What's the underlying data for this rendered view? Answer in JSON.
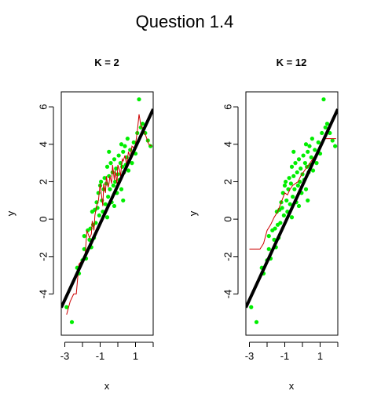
{
  "page": {
    "title": "Question 1.4"
  },
  "colors": {
    "points": "#00ee00",
    "fit_line": "#000000",
    "knn_line": "#cc0000",
    "axis": "#000000"
  },
  "chart_data": [
    {
      "type": "scatter",
      "title": "K = 2",
      "xlabel": "x",
      "ylabel": "y",
      "xlim": [
        -3.2,
        2.0
      ],
      "ylim": [
        -6.2,
        6.8
      ],
      "xticks": [
        -3,
        -1,
        1
      ],
      "yticks": [
        -4,
        -2,
        0,
        2,
        4,
        6
      ],
      "series": [
        {
          "kind": "points",
          "points": [
            [
              -2.9,
              -4.7
            ],
            [
              -2.6,
              -5.5
            ],
            [
              -2.3,
              -2.6
            ],
            [
              -2.2,
              -2.9
            ],
            [
              -2.0,
              -2.2
            ],
            [
              -1.9,
              -1.6
            ],
            [
              -1.8,
              -2.1
            ],
            [
              -1.7,
              -0.6
            ],
            [
              -1.6,
              -1.1
            ],
            [
              -1.55,
              -0.5
            ],
            [
              -1.5,
              -1.5
            ],
            [
              -1.45,
              0.4
            ],
            [
              -1.4,
              -0.3
            ],
            [
              -1.35,
              -1.0
            ],
            [
              -1.3,
              0.5
            ],
            [
              -1.25,
              -0.2
            ],
            [
              -1.2,
              0.9
            ],
            [
              -1.15,
              0.6
            ],
            [
              -1.1,
              1.4
            ],
            [
              -1.05,
              0.2
            ],
            [
              -1.0,
              1.8
            ],
            [
              -0.95,
              2.0
            ],
            [
              -0.9,
              1.0
            ],
            [
              -0.85,
              0.4
            ],
            [
              -0.8,
              1.6
            ],
            [
              -0.75,
              2.2
            ],
            [
              -0.7,
              0.8
            ],
            [
              -0.65,
              1.9
            ],
            [
              -0.6,
              2.8
            ],
            [
              -0.55,
              1.2
            ],
            [
              -0.5,
              2.3
            ],
            [
              -0.45,
              1.6
            ],
            [
              -0.4,
              3.0
            ],
            [
              -0.35,
              0.9
            ],
            [
              -0.3,
              2.5
            ],
            [
              -0.25,
              1.8
            ],
            [
              -0.2,
              3.2
            ],
            [
              -0.15,
              2.0
            ],
            [
              -0.1,
              2.7
            ],
            [
              -0.05,
              1.4
            ],
            [
              0.0,
              2.4
            ],
            [
              0.05,
              3.4
            ],
            [
              0.1,
              2.1
            ],
            [
              0.15,
              3.0
            ],
            [
              0.2,
              1.6
            ],
            [
              0.25,
              2.8
            ],
            [
              0.3,
              3.6
            ],
            [
              0.35,
              2.5
            ],
            [
              0.4,
              3.9
            ],
            [
              0.45,
              2.9
            ],
            [
              0.5,
              3.3
            ],
            [
              0.55,
              4.3
            ],
            [
              0.6,
              2.6
            ],
            [
              0.7,
              3.7
            ],
            [
              0.8,
              3.0
            ],
            [
              0.9,
              4.1
            ],
            [
              1.0,
              3.5
            ],
            [
              1.1,
              4.6
            ],
            [
              1.2,
              6.4
            ],
            [
              1.3,
              4.9
            ],
            [
              1.4,
              5.1
            ],
            [
              1.55,
              4.6
            ],
            [
              1.7,
              4.2
            ],
            [
              1.85,
              3.9
            ],
            [
              -0.6,
              0.1
            ],
            [
              -0.2,
              0.7
            ],
            [
              0.3,
              1.0
            ],
            [
              -1.9,
              -0.9
            ],
            [
              -0.5,
              3.6
            ],
            [
              0.2,
              4.0
            ]
          ]
        },
        {
          "kind": "fit",
          "points": [
            [
              -3.2,
              -4.72
            ],
            [
              2.0,
              5.88
            ]
          ]
        },
        {
          "kind": "knn",
          "points": [
            [
              -2.9,
              -5.1
            ],
            [
              -2.7,
              -4.4
            ],
            [
              -2.5,
              -4.0
            ],
            [
              -2.35,
              -4.0
            ],
            [
              -2.2,
              -2.4
            ],
            [
              -2.0,
              -2.2
            ],
            [
              -1.85,
              -1.9
            ],
            [
              -1.75,
              -0.6
            ],
            [
              -1.6,
              -1.0
            ],
            [
              -1.5,
              -0.8
            ],
            [
              -1.45,
              -0.1
            ],
            [
              -1.35,
              -0.6
            ],
            [
              -1.3,
              0.2
            ],
            [
              -1.2,
              0.7
            ],
            [
              -1.1,
              1.0
            ],
            [
              -1.0,
              1.9
            ],
            [
              -0.95,
              1.5
            ],
            [
              -0.85,
              0.7
            ],
            [
              -0.8,
              1.9
            ],
            [
              -0.7,
              1.4
            ],
            [
              -0.65,
              2.3
            ],
            [
              -0.55,
              1.7
            ],
            [
              -0.5,
              1.9
            ],
            [
              -0.45,
              2.3
            ],
            [
              -0.35,
              1.9
            ],
            [
              -0.3,
              2.9
            ],
            [
              -0.2,
              2.1
            ],
            [
              -0.15,
              2.6
            ],
            [
              -0.05,
              1.9
            ],
            [
              0.0,
              2.9
            ],
            [
              0.1,
              2.6
            ],
            [
              0.15,
              2.3
            ],
            [
              0.25,
              3.2
            ],
            [
              0.3,
              3.1
            ],
            [
              0.4,
              3.4
            ],
            [
              0.5,
              2.9
            ],
            [
              0.6,
              3.6
            ],
            [
              0.7,
              3.3
            ],
            [
              0.8,
              3.9
            ],
            [
              0.9,
              3.8
            ],
            [
              1.0,
              4.0
            ],
            [
              1.1,
              4.7
            ],
            [
              1.2,
              5.6
            ],
            [
              1.3,
              5.0
            ],
            [
              1.45,
              4.8
            ],
            [
              1.6,
              4.4
            ],
            [
              1.75,
              4.0
            ],
            [
              1.9,
              3.9
            ]
          ]
        }
      ]
    },
    {
      "type": "scatter",
      "title": "K = 12",
      "xlabel": "x",
      "ylabel": "y",
      "xlim": [
        -3.2,
        2.0
      ],
      "ylim": [
        -6.2,
        6.8
      ],
      "xticks": [
        -3,
        -1,
        1
      ],
      "yticks": [
        -4,
        -2,
        0,
        2,
        4,
        6
      ],
      "series": [
        {
          "kind": "points",
          "points": [
            [
              -2.9,
              -4.7
            ],
            [
              -2.6,
              -5.5
            ],
            [
              -2.3,
              -2.6
            ],
            [
              -2.2,
              -2.9
            ],
            [
              -2.0,
              -2.2
            ],
            [
              -1.9,
              -1.6
            ],
            [
              -1.8,
              -2.1
            ],
            [
              -1.7,
              -0.6
            ],
            [
              -1.6,
              -1.1
            ],
            [
              -1.55,
              -0.5
            ],
            [
              -1.5,
              -1.5
            ],
            [
              -1.45,
              0.4
            ],
            [
              -1.4,
              -0.3
            ],
            [
              -1.35,
              -1.0
            ],
            [
              -1.3,
              0.5
            ],
            [
              -1.25,
              -0.2
            ],
            [
              -1.2,
              0.9
            ],
            [
              -1.15,
              0.6
            ],
            [
              -1.1,
              1.4
            ],
            [
              -1.05,
              0.2
            ],
            [
              -1.0,
              1.8
            ],
            [
              -0.95,
              2.0
            ],
            [
              -0.9,
              1.0
            ],
            [
              -0.85,
              0.4
            ],
            [
              -0.8,
              1.6
            ],
            [
              -0.75,
              2.2
            ],
            [
              -0.7,
              0.8
            ],
            [
              -0.65,
              1.9
            ],
            [
              -0.6,
              2.8
            ],
            [
              -0.55,
              1.2
            ],
            [
              -0.5,
              2.3
            ],
            [
              -0.45,
              1.6
            ],
            [
              -0.4,
              3.0
            ],
            [
              -0.35,
              0.9
            ],
            [
              -0.3,
              2.5
            ],
            [
              -0.25,
              1.8
            ],
            [
              -0.2,
              3.2
            ],
            [
              -0.15,
              2.0
            ],
            [
              -0.1,
              2.7
            ],
            [
              -0.05,
              1.4
            ],
            [
              0.0,
              2.4
            ],
            [
              0.05,
              3.4
            ],
            [
              0.1,
              2.1
            ],
            [
              0.15,
              3.0
            ],
            [
              0.2,
              1.6
            ],
            [
              0.25,
              2.8
            ],
            [
              0.3,
              3.6
            ],
            [
              0.35,
              2.5
            ],
            [
              0.4,
              3.9
            ],
            [
              0.45,
              2.9
            ],
            [
              0.5,
              3.3
            ],
            [
              0.55,
              4.3
            ],
            [
              0.6,
              2.6
            ],
            [
              0.7,
              3.7
            ],
            [
              0.8,
              3.0
            ],
            [
              0.9,
              4.1
            ],
            [
              1.0,
              3.5
            ],
            [
              1.1,
              4.6
            ],
            [
              1.2,
              6.4
            ],
            [
              1.3,
              4.9
            ],
            [
              1.4,
              5.1
            ],
            [
              1.55,
              4.6
            ],
            [
              1.7,
              4.2
            ],
            [
              1.85,
              3.9
            ],
            [
              -0.6,
              0.1
            ],
            [
              -0.2,
              0.7
            ],
            [
              0.3,
              1.0
            ],
            [
              -1.9,
              -0.9
            ],
            [
              -0.5,
              3.6
            ],
            [
              0.2,
              4.0
            ]
          ]
        },
        {
          "kind": "fit",
          "points": [
            [
              -3.2,
              -4.72
            ],
            [
              2.0,
              5.88
            ]
          ]
        },
        {
          "kind": "knn",
          "points": [
            [
              -3.0,
              -1.6
            ],
            [
              -2.4,
              -1.6
            ],
            [
              -2.2,
              -1.3
            ],
            [
              -2.0,
              -0.6
            ],
            [
              -1.8,
              -0.3
            ],
            [
              -1.6,
              0.1
            ],
            [
              -1.4,
              0.4
            ],
            [
              -1.2,
              0.9
            ],
            [
              -1.0,
              1.4
            ],
            [
              -0.85,
              1.3
            ],
            [
              -0.7,
              1.6
            ],
            [
              -0.55,
              1.8
            ],
            [
              -0.4,
              1.9
            ],
            [
              -0.25,
              2.0
            ],
            [
              -0.1,
              2.3
            ],
            [
              0.05,
              2.5
            ],
            [
              0.2,
              2.7
            ],
            [
              0.35,
              2.9
            ],
            [
              0.5,
              3.1
            ],
            [
              0.65,
              3.3
            ],
            [
              0.8,
              3.5
            ],
            [
              0.95,
              3.8
            ],
            [
              1.1,
              4.1
            ],
            [
              1.25,
              4.3
            ],
            [
              1.45,
              4.3
            ],
            [
              1.65,
              4.3
            ],
            [
              1.9,
              4.3
            ]
          ]
        }
      ]
    }
  ]
}
